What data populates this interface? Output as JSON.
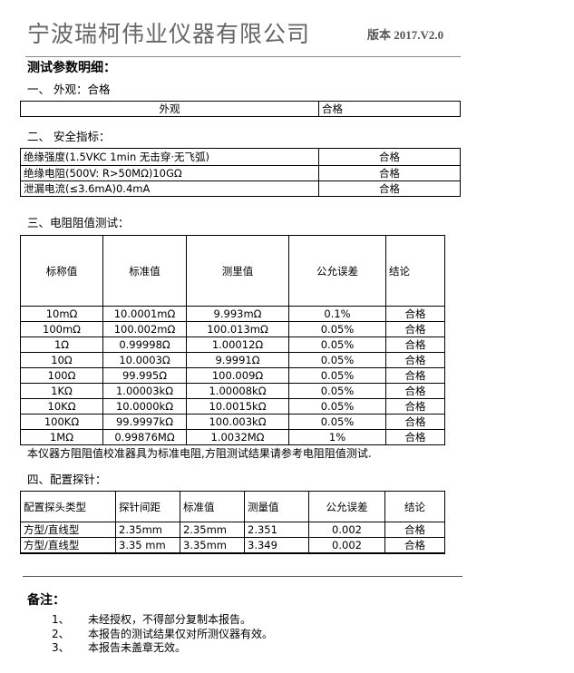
{
  "header": {
    "company": "宁波瑞柯伟业仪器有限公司",
    "version": "版本 2017.V2.0"
  },
  "heading": "测试参数明细：",
  "s1": {
    "title": "一、 外观：合格",
    "label": "外观",
    "result": "合格"
  },
  "s2": {
    "title": "二、 安全指标：",
    "rows": [
      [
        "绝缘强度(1.5VKC 1min 无击穿·无飞弧)",
        "合格"
      ],
      [
        "绝缘电阻(500V: R>50MΩ)10GΩ",
        "合格"
      ],
      [
        "泄漏电流(≤3.6mA)0.4mA",
        "合格"
      ]
    ]
  },
  "s3": {
    "title": "三、电阻阻值测试：",
    "headers": [
      "标称值",
      "标准值",
      "测里值",
      "公允误差",
      "结论"
    ],
    "rows": [
      [
        "10mΩ",
        "10.0001mΩ",
        "9.993mΩ",
        "0.1%",
        "合格"
      ],
      [
        "100mΩ",
        "100.002mΩ",
        "100.013mΩ",
        "0.05%",
        "合格"
      ],
      [
        "1Ω",
        "0.99998Ω",
        "1.00012Ω",
        "0.05%",
        "合格"
      ],
      [
        "10Ω",
        "10.0003Ω",
        "9.9991Ω",
        "0.05%",
        "合格"
      ],
      [
        "100Ω",
        "99.995Ω",
        "100.009Ω",
        "0.05%",
        "合格"
      ],
      [
        "1KΩ",
        "1.00003kΩ",
        "1.00008kΩ",
        "0.05%",
        "合格"
      ],
      [
        "10KΩ",
        "10.0000kΩ",
        "10.0015kΩ",
        "0.05%",
        "合格"
      ],
      [
        "100KΩ",
        "99.9997kΩ",
        "100.003kΩ",
        "0.05%",
        "合格"
      ],
      [
        "1MΩ",
        "0.99876MΩ",
        "1.0032MΩ",
        "1%",
        "合格"
      ]
    ],
    "note": "本仪器方阻阻值校准器具为标准电阻,方阻测试结果请参考电阻阻值测试."
  },
  "s4": {
    "title": "四、配置探针：",
    "headers": [
      "配置探头类型",
      "探针间距",
      "标准值",
      "测量值",
      "公允误差",
      "结论"
    ],
    "rows": [
      [
        "方型/直线型",
        "2.35mm",
        "2.35mm",
        "2.351",
        "0.002",
        "合格"
      ],
      [
        "方型/直线型",
        "3.35 mm",
        "3.35mm",
        "3.349",
        "0.002",
        "合格"
      ],
      [
        "",
        "",
        "",
        "",
        "",
        ""
      ]
    ]
  },
  "remarks": {
    "title": "备注：",
    "items": [
      {
        "num": "1、",
        "text": "未经授权，不得部分复制本报告。"
      },
      {
        "num": "2、",
        "text": "本报告的测试结果仅对所测仪器有效。"
      },
      {
        "num": "3、",
        "text": "本报告未盖章无效。"
      }
    ]
  }
}
